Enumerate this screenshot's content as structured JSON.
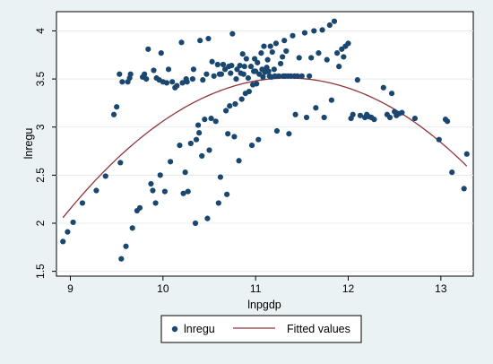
{
  "chart_data": {
    "type": "scatter",
    "xlabel": "lnpgdp",
    "ylabel": "lnregu",
    "xlim": [
      8.85,
      13.35
    ],
    "ylim": [
      1.45,
      4.2
    ],
    "x_ticks": [
      9,
      10,
      11,
      12,
      13
    ],
    "y_ticks": [
      1.5,
      2,
      2.5,
      3,
      3.5,
      4
    ],
    "x_tick_labels": [
      "9",
      "10",
      "11",
      "12",
      "13"
    ],
    "y_tick_labels": [
      "1.5",
      "2",
      "2.5",
      "3",
      "3.5",
      "4"
    ],
    "grid": "horizontal",
    "legend_position": "bottom",
    "colors": {
      "scatter": "#1a476f",
      "fit": "#90353b",
      "plot_bg": "#ffffff",
      "outer_bg": "#eaf2f3"
    },
    "series": [
      {
        "name": "lnregu",
        "kind": "scatter",
        "points": [
          [
            8.92,
            1.81
          ],
          [
            8.97,
            1.91
          ],
          [
            9.03,
            2.01
          ],
          [
            9.13,
            2.21
          ],
          [
            9.28,
            2.34
          ],
          [
            9.38,
            2.49
          ],
          [
            9.47,
            3.13
          ],
          [
            9.5,
            3.21
          ],
          [
            9.53,
            3.55
          ],
          [
            9.54,
            2.63
          ],
          [
            9.56,
            3.47
          ],
          [
            9.55,
            1.63
          ],
          [
            9.6,
            1.76
          ],
          [
            9.62,
            3.47
          ],
          [
            9.64,
            3.51
          ],
          [
            9.65,
            3.55
          ],
          [
            9.67,
            1.95
          ],
          [
            9.72,
            2.13
          ],
          [
            9.75,
            2.16
          ],
          [
            9.78,
            3.52
          ],
          [
            9.8,
            3.55
          ],
          [
            9.82,
            3.5
          ],
          [
            9.84,
            3.81
          ],
          [
            9.87,
            2.41
          ],
          [
            9.89,
            2.34
          ],
          [
            9.9,
            3.59
          ],
          [
            9.92,
            2.21
          ],
          [
            9.93,
            3.51
          ],
          [
            9.96,
            3.49
          ],
          [
            9.97,
            2.5
          ],
          [
            9.98,
            3.77
          ],
          [
            10.0,
            3.47
          ],
          [
            10.02,
            2.33
          ],
          [
            10.04,
            3.46
          ],
          [
            10.06,
            3.6
          ],
          [
            10.08,
            2.64
          ],
          [
            10.1,
            3.47
          ],
          [
            10.13,
            3.41
          ],
          [
            10.15,
            3.43
          ],
          [
            10.18,
            2.81
          ],
          [
            10.2,
            3.88
          ],
          [
            10.21,
            3.46
          ],
          [
            10.22,
            2.31
          ],
          [
            10.24,
            2.53
          ],
          [
            10.25,
            3.5
          ],
          [
            10.26,
            3.47
          ],
          [
            10.27,
            2.33
          ],
          [
            10.3,
            2.83
          ],
          [
            10.32,
            3.5
          ],
          [
            10.33,
            3.6
          ],
          [
            10.35,
            2.0
          ],
          [
            10.36,
            2.87
          ],
          [
            10.38,
            3.02
          ],
          [
            10.39,
            2.94
          ],
          [
            10.4,
            3.9
          ],
          [
            10.42,
            2.7
          ],
          [
            10.43,
            3.49
          ],
          [
            10.45,
            3.08
          ],
          [
            10.47,
            3.55
          ],
          [
            10.48,
            2.05
          ],
          [
            10.49,
            3.92
          ],
          [
            10.5,
            2.76
          ],
          [
            10.52,
            3.09
          ],
          [
            10.53,
            3.68
          ],
          [
            10.55,
            3.53
          ],
          [
            10.57,
            3.06
          ],
          [
            10.59,
            3.65
          ],
          [
            10.6,
            2.21
          ],
          [
            10.61,
            3.55
          ],
          [
            10.62,
            2.48
          ],
          [
            10.63,
            3.55
          ],
          [
            10.65,
            3.65
          ],
          [
            10.67,
            3.6
          ],
          [
            10.68,
            3.17
          ],
          [
            10.69,
            2.3
          ],
          [
            10.7,
            2.93
          ],
          [
            10.71,
            3.63
          ],
          [
            10.72,
            3.22
          ],
          [
            10.73,
            3.56
          ],
          [
            10.74,
            3.64
          ],
          [
            10.75,
            3.97
          ],
          [
            10.77,
            2.9
          ],
          [
            10.78,
            3.24
          ],
          [
            10.79,
            3.5
          ],
          [
            10.8,
            3.6
          ],
          [
            10.82,
            2.65
          ],
          [
            10.83,
            3.64
          ],
          [
            10.84,
            3.56
          ],
          [
            10.85,
            3.29
          ],
          [
            10.86,
            3.76
          ],
          [
            10.87,
            3.55
          ],
          [
            10.88,
            3.63
          ],
          [
            10.89,
            3.35
          ],
          [
            10.9,
            3.71
          ],
          [
            10.92,
            3.51
          ],
          [
            10.93,
            3.37
          ],
          [
            10.95,
            3.63
          ],
          [
            10.96,
            2.81
          ],
          [
            10.97,
            3.44
          ],
          [
            10.98,
            3.58
          ],
          [
            10.99,
            3.71
          ],
          [
            11.0,
            3.58
          ],
          [
            11.01,
            3.45
          ],
          [
            11.02,
            3.67
          ],
          [
            11.03,
            2.87
          ],
          [
            11.04,
            3.55
          ],
          [
            11.06,
            3.77
          ],
          [
            11.07,
            3.6
          ],
          [
            11.08,
            3.52
          ],
          [
            11.09,
            3.84
          ],
          [
            11.1,
            3.57
          ],
          [
            11.12,
            3.62
          ],
          [
            11.13,
            3.7
          ],
          [
            11.14,
            3.58
          ],
          [
            11.15,
            3.53
          ],
          [
            11.16,
            3.84
          ],
          [
            11.17,
            3.52
          ],
          [
            11.18,
            3.78
          ],
          [
            11.2,
            3.6
          ],
          [
            11.21,
            3.53
          ],
          [
            11.22,
            3.87
          ],
          [
            11.23,
            2.96
          ],
          [
            11.25,
            3.53
          ],
          [
            11.27,
            3.66
          ],
          [
            11.29,
            3.73
          ],
          [
            11.3,
            3.53
          ],
          [
            11.31,
            3.9
          ],
          [
            11.32,
            3.53
          ],
          [
            11.33,
            3.79
          ],
          [
            11.35,
            3.53
          ],
          [
            11.36,
            2.93
          ],
          [
            11.38,
            3.53
          ],
          [
            11.4,
            3.95
          ],
          [
            11.42,
            3.53
          ],
          [
            11.43,
            3.13
          ],
          [
            11.45,
            3.53
          ],
          [
            11.47,
            3.72
          ],
          [
            11.5,
            3.53
          ],
          [
            11.53,
            3.98
          ],
          [
            11.55,
            3.1
          ],
          [
            11.58,
            3.53
          ],
          [
            11.6,
            3.72
          ],
          [
            11.63,
            4.0
          ],
          [
            11.65,
            3.2
          ],
          [
            11.68,
            3.77
          ],
          [
            11.72,
            4.01
          ],
          [
            11.74,
            3.1
          ],
          [
            11.77,
            3.7
          ],
          [
            11.8,
            4.06
          ],
          [
            11.82,
            3.28
          ],
          [
            11.85,
            4.1
          ],
          [
            11.88,
            3.77
          ],
          [
            11.9,
            3.63
          ],
          [
            11.93,
            3.81
          ],
          [
            11.95,
            3.73
          ],
          [
            11.97,
            3.84
          ],
          [
            12.0,
            3.87
          ],
          [
            12.03,
            3.09
          ],
          [
            12.05,
            3.13
          ],
          [
            12.1,
            3.49
          ],
          [
            12.13,
            3.12
          ],
          [
            12.18,
            3.1
          ],
          [
            12.2,
            3.13
          ],
          [
            12.22,
            3.11
          ],
          [
            12.25,
            3.1
          ],
          [
            12.28,
            3.08
          ],
          [
            12.38,
            3.41
          ],
          [
            12.42,
            3.13
          ],
          [
            12.45,
            3.1
          ],
          [
            12.47,
            3.35
          ],
          [
            12.5,
            3.16
          ],
          [
            12.52,
            3.12
          ],
          [
            12.55,
            3.14
          ],
          [
            12.58,
            3.15
          ],
          [
            12.72,
            3.09
          ],
          [
            12.98,
            2.87
          ],
          [
            13.05,
            3.08
          ],
          [
            13.07,
            3.06
          ],
          [
            13.12,
            2.53
          ],
          [
            13.25,
            2.36
          ],
          [
            13.28,
            2.72
          ]
        ]
      },
      {
        "name": "Fitted values",
        "kind": "line",
        "quadratic": {
          "vertex_x": 11.35,
          "vertex_y": 3.51,
          "curvature": 0.246
        },
        "x_range": [
          8.92,
          13.28
        ]
      }
    ]
  }
}
